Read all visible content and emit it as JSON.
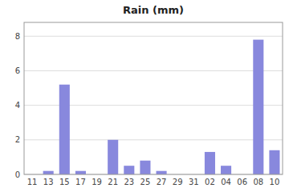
{
  "chart_data": {
    "type": "bar",
    "title": "Rain (mm)",
    "categories": [
      "11",
      "13",
      "15",
      "17",
      "19",
      "21",
      "23",
      "25",
      "27",
      "29",
      "31",
      "02",
      "04",
      "06",
      "08",
      "10"
    ],
    "values": [
      0.0,
      0.2,
      5.2,
      0.2,
      0.0,
      2.0,
      0.5,
      0.8,
      0.2,
      0.0,
      0.0,
      1.3,
      0.5,
      0.0,
      7.8,
      1.4
    ],
    "color": "#8888dd",
    "ylim": [
      0,
      8.8
    ],
    "yticks": [
      0,
      2,
      4,
      6,
      8
    ],
    "grid": true
  }
}
